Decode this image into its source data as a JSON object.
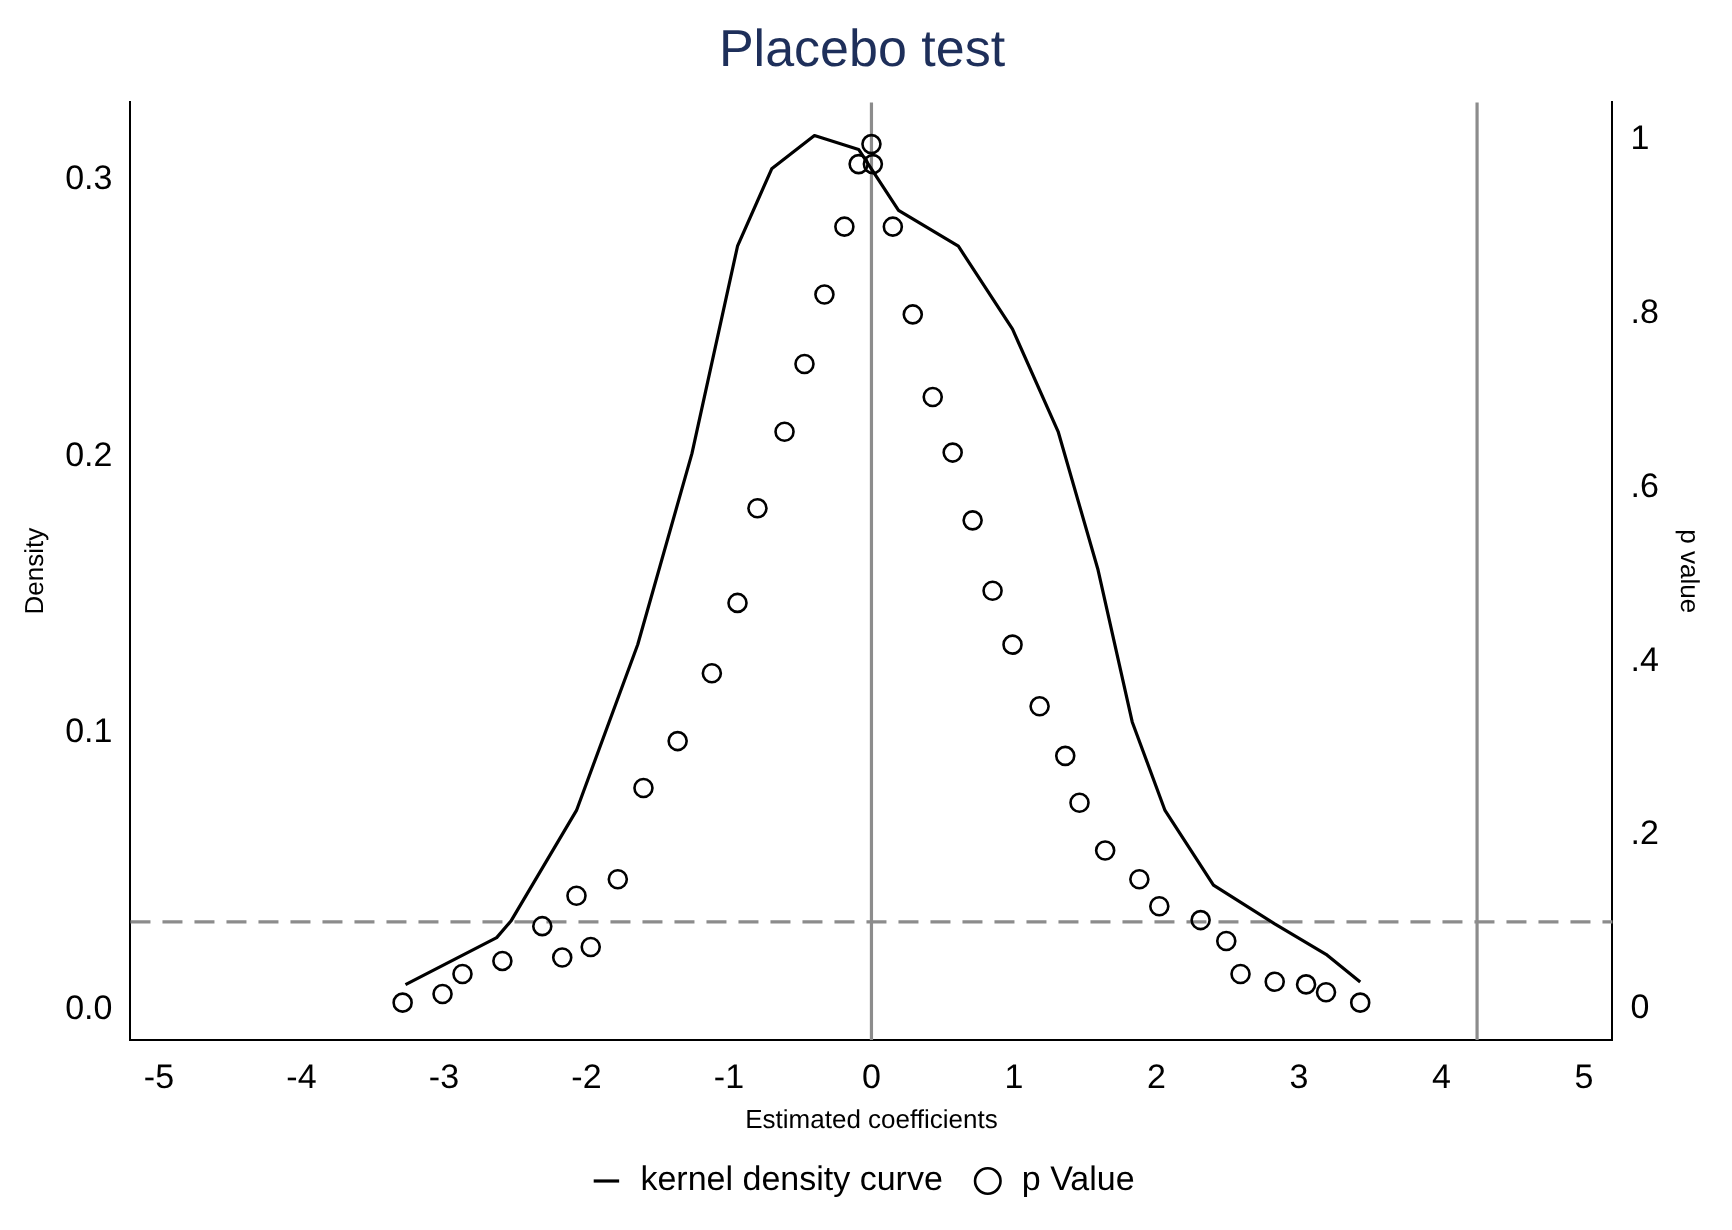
{
  "chart_data": {
    "type": "line",
    "title": "Placebo test",
    "xlabel": "Estimated coefficients",
    "ylabel": "Density",
    "y2label": "p value",
    "xlim": [
      -5.2,
      5.2
    ],
    "xticks": [
      -5,
      -4,
      -3,
      -2,
      -1,
      0,
      1,
      2,
      3,
      4,
      5
    ],
    "ylim": [
      -0.011,
      0.328
    ],
    "yticks": [
      {
        "value": 0,
        "label": "0.0"
      },
      {
        "value": 0.1,
        "label": "0.1"
      },
      {
        "value": 0.2,
        "label": "0.2"
      },
      {
        "value": 0.3,
        "label": "0.3"
      }
    ],
    "y2lim": [
      -0.036,
      1.043
    ],
    "y2ticks": [
      0,
      {
        "value": 0.2,
        "label": ".2"
      },
      {
        "value": 0.4,
        "label": ".4"
      },
      {
        "value": 0.6,
        "label": ".6"
      },
      {
        "value": 0.8,
        "label": ".8"
      },
      1
    ],
    "grid": false,
    "legend": "bottom",
    "series": [
      {
        "name": "kernel density curve",
        "color": "#000000",
        "marker": "none",
        "line_style": "solid",
        "x": [
          -3.27,
          -2.63,
          -2.53,
          -2.07,
          -1.64,
          -1.26,
          -0.94,
          -0.7,
          -0.4,
          -0.09,
          0.19,
          0.61,
          0.99,
          1.31,
          1.59,
          1.83,
          2.06,
          2.4,
          2.83,
          3.19,
          3.43
        ],
        "values": [
          0.009,
          0.026,
          0.032,
          0.072,
          0.132,
          0.201,
          0.276,
          0.304,
          0.316,
          0.311,
          0.289,
          0.276,
          0.246,
          0.209,
          0.159,
          0.104,
          0.072,
          0.045,
          0.031,
          0.02,
          0.01
        ]
      },
      {
        "name": "p Value",
        "type": "scatter",
        "axis": "y2",
        "color": "#000000",
        "marker": "circle",
        "x": [
          -3.29,
          -3.01,
          -2.87,
          -2.59,
          -2.31,
          -2.17,
          -1.97,
          -2.07,
          -1.78,
          -1.6,
          -1.36,
          -1.12,
          -0.94,
          -0.8,
          -0.61,
          -0.47,
          -0.33,
          -0.19,
          -0.09,
          0.0,
          0.01,
          0.15,
          0.29,
          0.43,
          0.57,
          0.71,
          0.85,
          0.99,
          1.18,
          1.36,
          1.46,
          1.64,
          1.88,
          2.02,
          2.31,
          2.49,
          2.59,
          2.83,
          3.05,
          3.19,
          3.43
        ],
        "values": [
          0.007,
          0.017,
          0.04,
          0.055,
          0.095,
          0.059,
          0.071,
          0.13,
          0.149,
          0.254,
          0.308,
          0.386,
          0.467,
          0.576,
          0.664,
          0.742,
          0.822,
          0.9,
          0.972,
          0.995,
          0.972,
          0.9,
          0.799,
          0.704,
          0.64,
          0.562,
          0.481,
          0.419,
          0.348,
          0.291,
          0.237,
          0.182,
          0.149,
          0.118,
          0.102,
          0.078,
          0.04,
          0.031,
          0.028,
          0.019,
          0.007
        ]
      }
    ],
    "ref_lines": [
      {
        "axis": "x",
        "value": 0,
        "color": "#8c8c8c",
        "line_style": "solid"
      },
      {
        "axis": "x",
        "value": 4.25,
        "color": "#8c8c8c",
        "line_style": "solid"
      },
      {
        "axis": "y2",
        "value": 0.1,
        "color": "#8c8c8c",
        "line_style": "dashed"
      }
    ]
  }
}
